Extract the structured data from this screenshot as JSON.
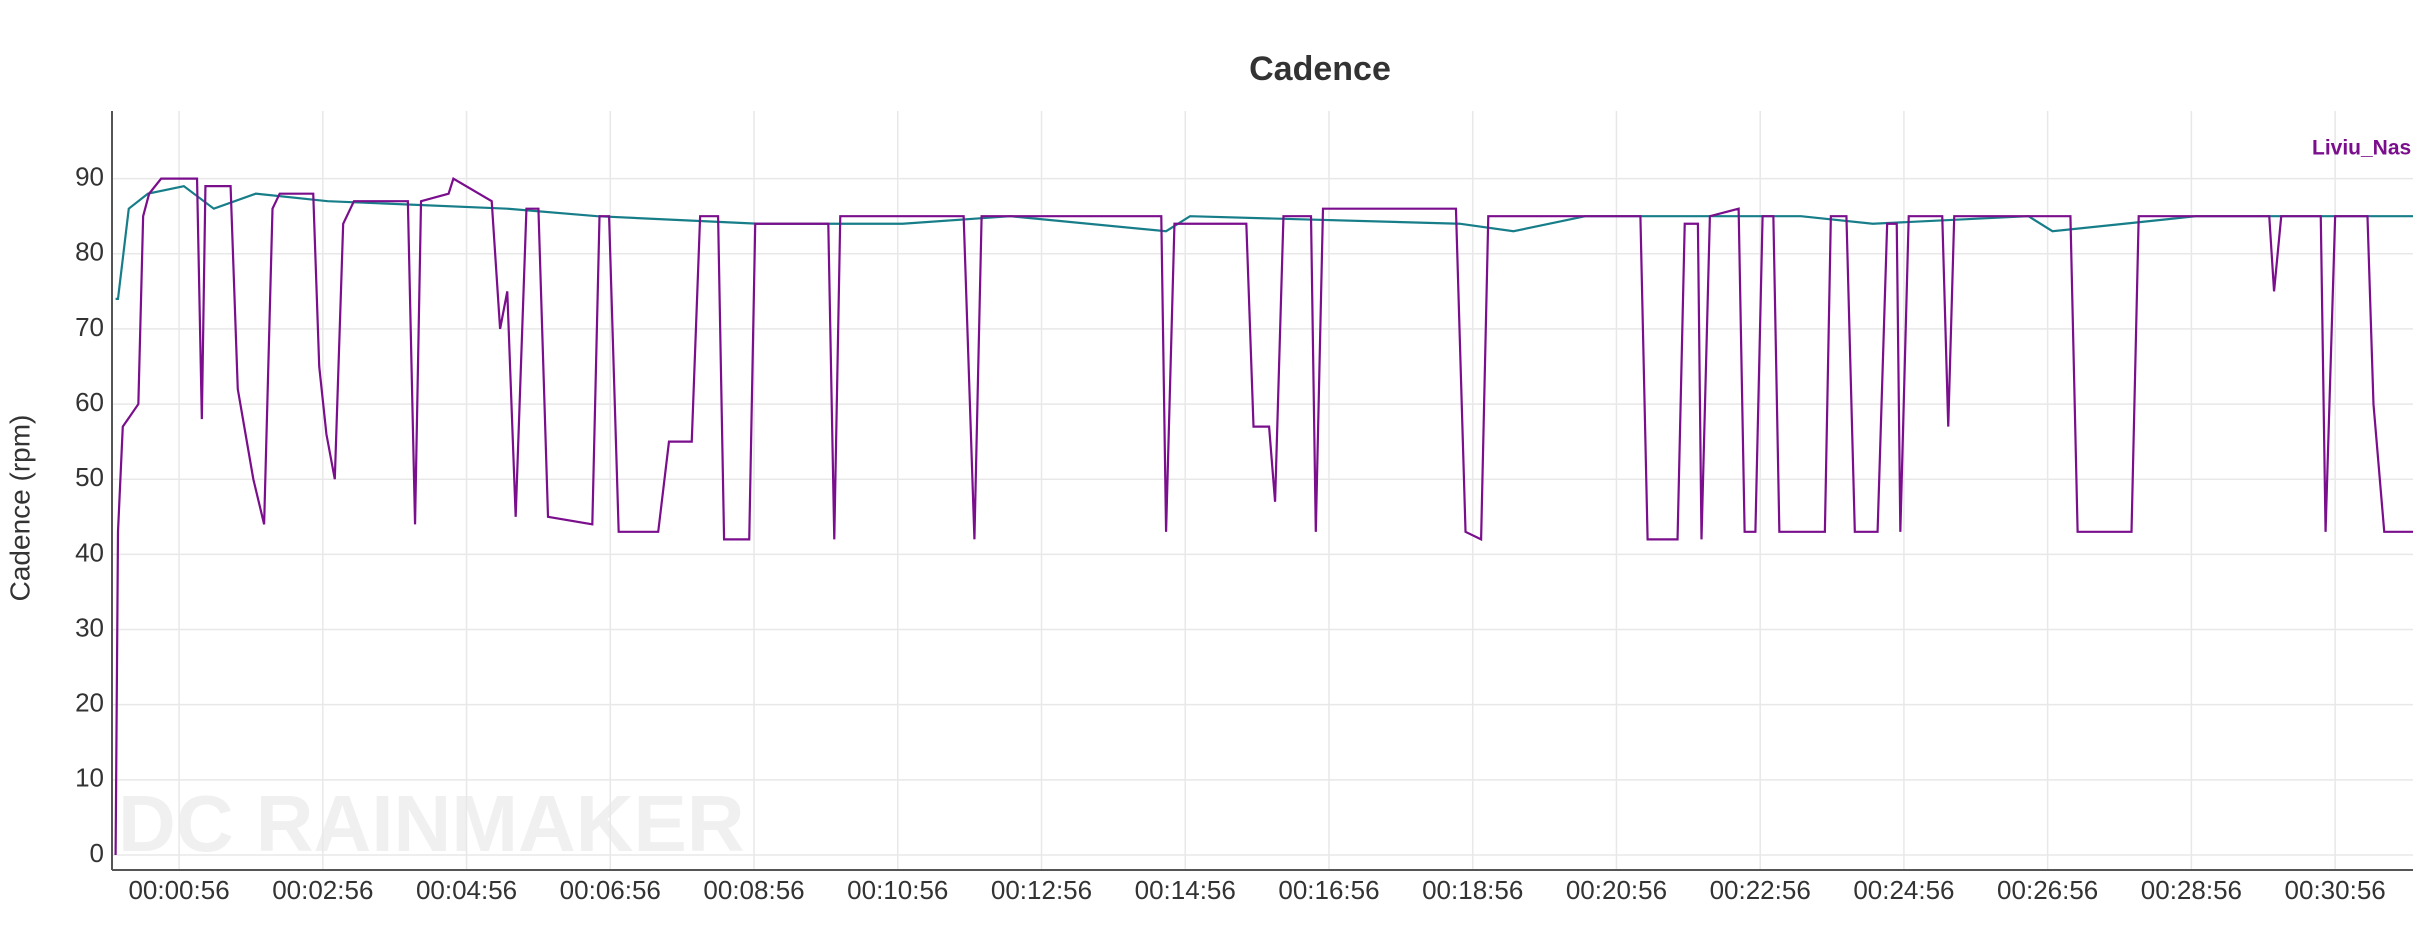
{
  "chart_data": {
    "type": "line",
    "title": "Cadence",
    "ylabel": "Cadence (rpm)",
    "watermark": "DC RAINMAKER",
    "xlim": [
      "00:00:00",
      "00:32:01"
    ],
    "xticks": [
      "00:00:56",
      "00:02:56",
      "00:04:56",
      "00:06:56",
      "00:08:56",
      "00:10:56",
      "00:12:56",
      "00:14:56",
      "00:16:56",
      "00:18:56",
      "00:20:56",
      "00:22:56",
      "00:24:56",
      "00:26:56",
      "00:28:56",
      "00:30:56"
    ],
    "ylim": [
      -2,
      99
    ],
    "yticks": [
      0,
      10,
      20,
      30,
      40,
      50,
      60,
      70,
      80,
      90
    ],
    "grid": true,
    "legend": "top-right",
    "series": [
      {
        "name": "Liviu_Nas",
        "color": "#7a0e8c",
        "x": [
          "00:00:03",
          "00:00:05",
          "00:00:09",
          "00:00:22",
          "00:00:26",
          "00:00:31",
          "00:00:41",
          "00:01:11",
          "00:01:15",
          "00:01:18",
          "00:01:39",
          "00:01:45",
          "00:01:58",
          "00:02:07",
          "00:02:14",
          "00:02:20",
          "00:02:48",
          "00:02:53",
          "00:02:59",
          "00:03:06",
          "00:03:13",
          "00:03:22",
          "00:04:07",
          "00:04:13",
          "00:04:18",
          "00:04:41",
          "00:04:45",
          "00:05:17",
          "00:05:24",
          "00:05:30",
          "00:05:37",
          "00:05:46",
          "00:05:56",
          "00:06:04",
          "00:06:41",
          "00:06:47",
          "00:06:55",
          "00:07:03",
          "00:07:36",
          "00:07:45",
          "00:08:04",
          "00:08:11",
          "00:08:26",
          "00:08:31",
          "00:08:52",
          "00:08:57",
          "00:09:58",
          "00:10:03",
          "00:10:08",
          "00:11:51",
          "00:12:00",
          "00:12:06",
          "00:14:36",
          "00:14:40",
          "00:14:47",
          "00:15:47",
          "00:15:53",
          "00:16:06",
          "00:16:11",
          "00:16:18",
          "00:16:41",
          "00:16:45",
          "00:16:51",
          "00:18:42",
          "00:18:50",
          "00:19:03",
          "00:19:09",
          "00:21:16",
          "00:21:22",
          "00:21:47",
          "00:21:53",
          "00:22:04",
          "00:22:07",
          "00:22:14",
          "00:22:38",
          "00:22:43",
          "00:22:52",
          "00:22:58",
          "00:23:07",
          "00:23:12",
          "00:23:50",
          "00:23:55",
          "00:24:08",
          "00:24:15",
          "00:24:34",
          "00:24:42",
          "00:24:50",
          "00:24:53",
          "00:25:00",
          "00:25:28",
          "00:25:33",
          "00:25:38",
          "00:27:15",
          "00:27:21",
          "00:28:06",
          "00:28:12",
          "00:30:01",
          "00:30:05",
          "00:30:11",
          "00:30:44",
          "00:30:48",
          "00:30:56",
          "00:31:23",
          "00:31:28",
          "00:31:37",
          "00:32:01"
        ],
        "values": [
          0,
          43,
          57,
          60,
          85,
          88,
          90,
          90,
          58,
          89,
          89,
          62,
          50,
          44,
          86,
          88,
          88,
          65,
          56,
          50,
          84,
          87,
          87,
          44,
          87,
          88,
          90,
          87,
          70,
          75,
          45,
          86,
          86,
          45,
          44,
          85,
          85,
          43,
          43,
          55,
          55,
          85,
          85,
          42,
          42,
          84,
          84,
          42,
          85,
          85,
          42,
          85,
          85,
          43,
          84,
          84,
          57,
          57,
          47,
          85,
          85,
          43,
          86,
          86,
          43,
          42,
          85,
          85,
          42,
          42,
          84,
          84,
          42,
          85,
          86,
          43,
          43,
          85,
          85,
          43,
          43,
          85,
          85,
          43,
          43,
          84,
          84,
          43,
          85,
          85,
          57,
          85,
          85,
          43,
          43,
          85,
          85,
          75,
          85,
          85,
          43,
          85,
          85,
          60,
          43,
          43
        ]
      },
      {
        "color": "#177e89",
        "x": [
          "00:00:03",
          "00:00:05",
          "00:00:14",
          "00:00:30",
          "00:01:00",
          "00:01:25",
          "00:02:00",
          "00:03:00",
          "00:05:30",
          "00:06:45",
          "00:09:00",
          "00:11:00",
          "00:12:30",
          "00:14:40",
          "00:15:00",
          "00:18:45",
          "00:19:30",
          "00:20:30",
          "00:23:30",
          "00:24:30",
          "00:26:40",
          "00:27:00",
          "00:28:00",
          "00:29:00",
          "00:32:01"
        ],
        "values": [
          74,
          74,
          86,
          88,
          89,
          86,
          88,
          87,
          86,
          85,
          84,
          84,
          85,
          83,
          85,
          84,
          83,
          85,
          85,
          84,
          85,
          83,
          84,
          85,
          85
        ]
      }
    ]
  }
}
